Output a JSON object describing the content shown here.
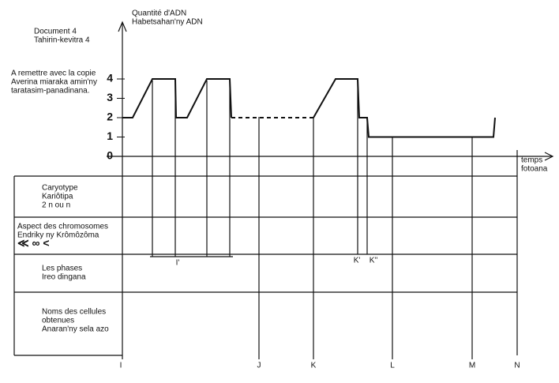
{
  "document": {
    "title": [
      "Document 4",
      "Tahirin-kevitra 4"
    ],
    "note": [
      "A remettre avec la copie",
      "Averina miaraka amin'ny",
      "taratasim-panadinana."
    ]
  },
  "chart_data": {
    "type": "line",
    "y_label": [
      "Quantité d'ADN",
      "Habetsahan'ny ADN"
    ],
    "x_label": [
      "temps",
      "fotoana"
    ],
    "ylim": [
      0,
      4
    ],
    "yticks": [
      0,
      1,
      2,
      3,
      4
    ],
    "xlim": [
      0,
      520
    ],
    "series": [
      {
        "color": "#111",
        "style": "solid",
        "x": [
          0,
          13,
          38,
          67,
          68,
          82,
          107,
          136,
          138,
          190,
          242,
          270,
          298,
          300,
          310,
          312,
          470,
          472
        ],
        "values": [
          2,
          2,
          4,
          4,
          2,
          2,
          4,
          4,
          2,
          null,
          2,
          4,
          4,
          2,
          2,
          1,
          1,
          2
        ]
      },
      {
        "color": "#111",
        "style": "dashed",
        "x": [
          138,
          242
        ],
        "values": [
          2,
          2
        ]
      }
    ]
  },
  "table": {
    "rows": [
      [
        "Caryotype",
        "Kariôtipa",
        "2 n ou n"
      ],
      [
        "Aspect des chromosomes",
        "Endriky ny Krômôzôma",
        "≪  ∞  <"
      ],
      [
        "Les phases",
        "Ireo dingana"
      ],
      [
        "Noms des cellules",
        "obtenues",
        "Anaran'ny sela azo"
      ]
    ],
    "time_marks": [
      "I",
      "J",
      "K",
      "L",
      "M",
      "N"
    ],
    "phase_marks": [
      "I'",
      "K'",
      "K''"
    ]
  }
}
